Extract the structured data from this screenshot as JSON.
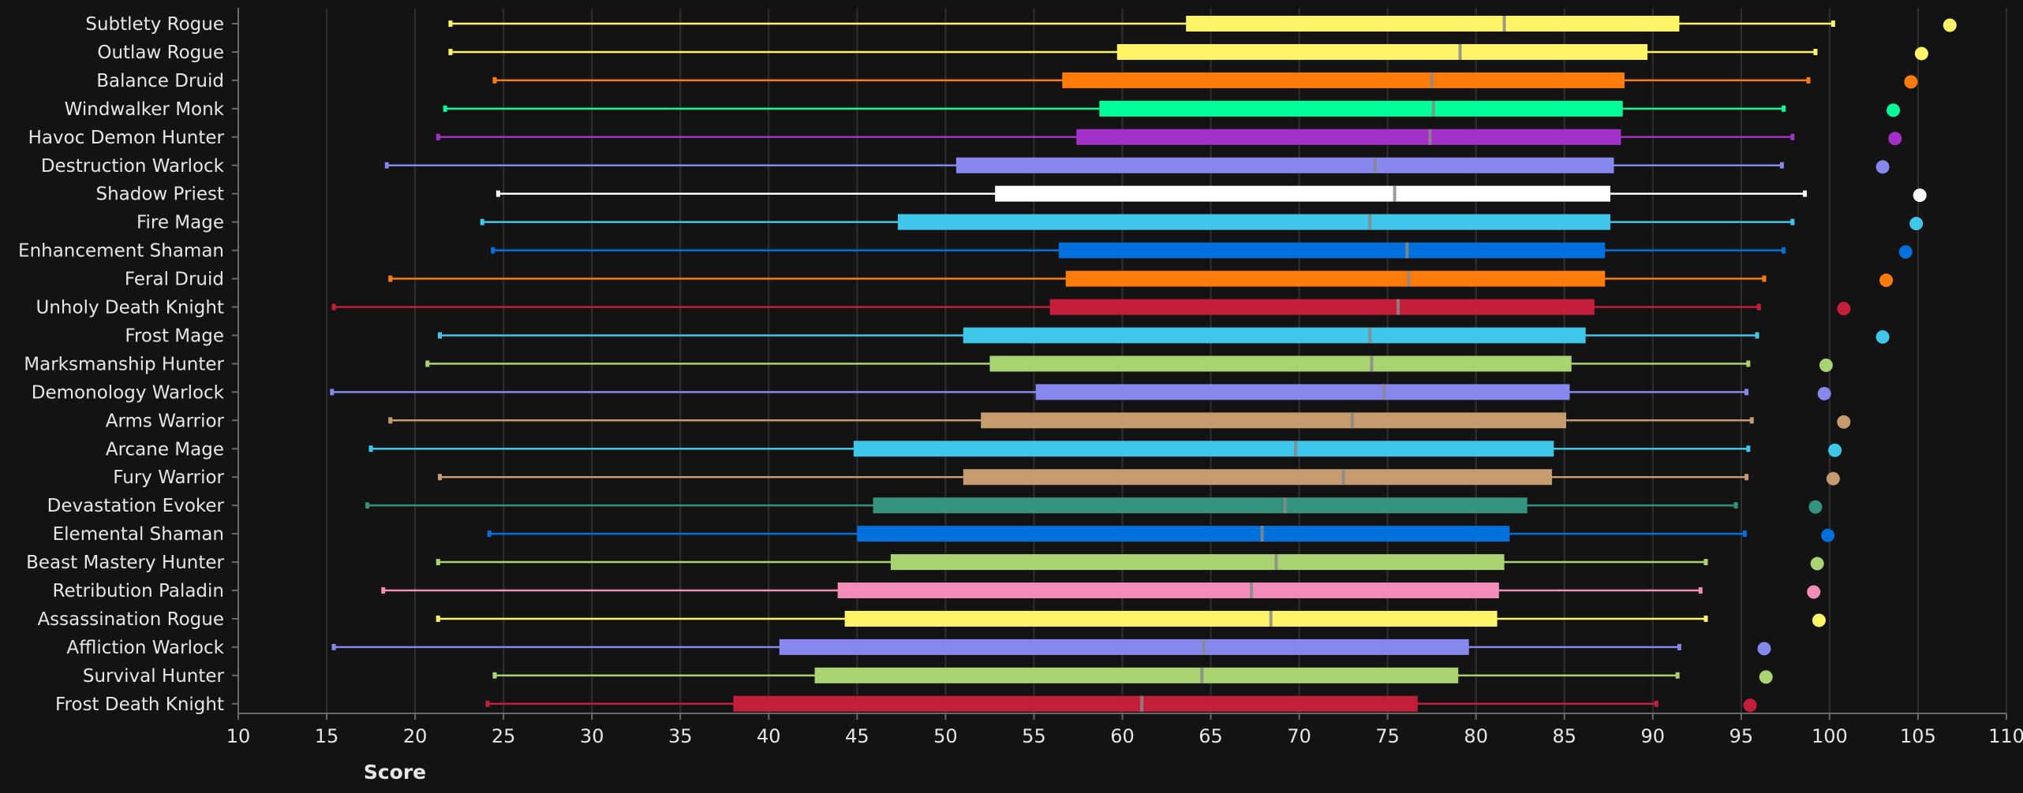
{
  "chart_data": {
    "type": "box",
    "title": "",
    "xlabel": "Score",
    "ylabel": "",
    "xlim": [
      10,
      110
    ],
    "xticks": [
      10,
      15,
      20,
      25,
      30,
      35,
      40,
      45,
      50,
      55,
      60,
      65,
      70,
      75,
      80,
      85,
      90,
      95,
      100,
      105,
      110
    ],
    "grid": "vertical",
    "legend": "none",
    "series": [
      {
        "name": "Subtlety Rogue",
        "color": "#FFF468",
        "whisker_low": 22.0,
        "q1": 63.6,
        "median": 81.6,
        "q3": 91.5,
        "whisker_high": 100.2,
        "max": 106.8
      },
      {
        "name": "Outlaw Rogue",
        "color": "#FFF468",
        "whisker_low": 22.0,
        "q1": 59.7,
        "median": 79.1,
        "q3": 89.7,
        "whisker_high": 99.2,
        "max": 105.2
      },
      {
        "name": "Balance Druid",
        "color": "#FF7C0A",
        "whisker_low": 24.5,
        "q1": 56.6,
        "median": 77.5,
        "q3": 88.4,
        "whisker_high": 98.8,
        "max": 104.6
      },
      {
        "name": "Windwalker Monk",
        "color": "#00FF98",
        "whisker_low": 21.7,
        "q1": 58.7,
        "median": 77.6,
        "q3": 88.3,
        "whisker_high": 97.4,
        "max": 103.6
      },
      {
        "name": "Havoc Demon Hunter",
        "color": "#A330C9",
        "whisker_low": 21.3,
        "q1": 57.4,
        "median": 77.4,
        "q3": 88.2,
        "whisker_high": 97.9,
        "max": 103.7
      },
      {
        "name": "Destruction Warlock",
        "color": "#8788EE",
        "whisker_low": 18.4,
        "q1": 50.6,
        "median": 74.3,
        "q3": 87.8,
        "whisker_high": 97.3,
        "max": 103.0
      },
      {
        "name": "Shadow Priest",
        "color": "#FFFFFF",
        "whisker_low": 24.7,
        "q1": 52.8,
        "median": 75.4,
        "q3": 87.6,
        "whisker_high": 98.6,
        "max": 105.1
      },
      {
        "name": "Fire Mage",
        "color": "#3FC7EB",
        "whisker_low": 23.8,
        "q1": 47.3,
        "median": 74.0,
        "q3": 87.6,
        "whisker_high": 97.9,
        "max": 104.9
      },
      {
        "name": "Enhancement Shaman",
        "color": "#0070DD",
        "whisker_low": 24.4,
        "q1": 56.4,
        "median": 76.1,
        "q3": 87.3,
        "whisker_high": 97.4,
        "max": 104.3
      },
      {
        "name": "Feral Druid",
        "color": "#FF7C0A",
        "whisker_low": 18.6,
        "q1": 56.8,
        "median": 76.2,
        "q3": 87.3,
        "whisker_high": 96.3,
        "max": 103.2
      },
      {
        "name": "Unholy Death Knight",
        "color": "#C41E3A",
        "whisker_low": 15.4,
        "q1": 55.9,
        "median": 75.6,
        "q3": 86.7,
        "whisker_high": 96.0,
        "max": 100.8
      },
      {
        "name": "Frost Mage",
        "color": "#3FC7EB",
        "whisker_low": 21.4,
        "q1": 51.0,
        "median": 74.0,
        "q3": 86.2,
        "whisker_high": 95.9,
        "max": 103.0
      },
      {
        "name": "Marksmanship Hunter",
        "color": "#AAD372",
        "whisker_low": 20.7,
        "q1": 52.5,
        "median": 74.1,
        "q3": 85.4,
        "whisker_high": 95.4,
        "max": 99.8
      },
      {
        "name": "Demonology Warlock",
        "color": "#8788EE",
        "whisker_low": 15.3,
        "q1": 55.1,
        "median": 74.8,
        "q3": 85.3,
        "whisker_high": 95.3,
        "max": 99.7
      },
      {
        "name": "Arms Warrior",
        "color": "#C69B6D",
        "whisker_low": 18.6,
        "q1": 52.0,
        "median": 73.0,
        "q3": 85.1,
        "whisker_high": 95.6,
        "max": 100.8
      },
      {
        "name": "Arcane Mage",
        "color": "#3FC7EB",
        "whisker_low": 17.5,
        "q1": 44.8,
        "median": 69.8,
        "q3": 84.4,
        "whisker_high": 95.4,
        "max": 100.3
      },
      {
        "name": "Fury Warrior",
        "color": "#C69B6D",
        "whisker_low": 21.4,
        "q1": 51.0,
        "median": 72.5,
        "q3": 84.3,
        "whisker_high": 95.3,
        "max": 100.2
      },
      {
        "name": "Devastation Evoker",
        "color": "#33937F",
        "whisker_low": 17.3,
        "q1": 45.9,
        "median": 69.2,
        "q3": 82.9,
        "whisker_high": 94.7,
        "max": 99.2
      },
      {
        "name": "Elemental Shaman",
        "color": "#0070DD",
        "whisker_low": 24.2,
        "q1": 45.0,
        "median": 67.9,
        "q3": 81.9,
        "whisker_high": 95.2,
        "max": 99.9
      },
      {
        "name": "Beast Mastery Hunter",
        "color": "#AAD372",
        "whisker_low": 21.3,
        "q1": 46.9,
        "median": 68.7,
        "q3": 81.6,
        "whisker_high": 93.0,
        "max": 99.3
      },
      {
        "name": "Retribution Paladin",
        "color": "#F48CBA",
        "whisker_low": 18.2,
        "q1": 43.9,
        "median": 67.3,
        "q3": 81.3,
        "whisker_high": 92.7,
        "max": 99.1
      },
      {
        "name": "Assassination Rogue",
        "color": "#FFF468",
        "whisker_low": 21.3,
        "q1": 44.3,
        "median": 68.4,
        "q3": 81.2,
        "whisker_high": 93.0,
        "max": 99.4
      },
      {
        "name": "Affliction Warlock",
        "color": "#8788EE",
        "whisker_low": 15.4,
        "q1": 40.6,
        "median": 64.6,
        "q3": 79.6,
        "whisker_high": 91.5,
        "max": 96.3
      },
      {
        "name": "Survival Hunter",
        "color": "#AAD372",
        "whisker_low": 24.5,
        "q1": 42.6,
        "median": 64.5,
        "q3": 79.0,
        "whisker_high": 91.4,
        "max": 96.4
      },
      {
        "name": "Frost Death Knight",
        "color": "#C41E3A",
        "whisker_low": 24.1,
        "q1": 38.0,
        "median": 61.1,
        "q3": 76.7,
        "whisker_high": 90.2,
        "max": 95.5
      }
    ]
  },
  "colors": {
    "background": "#131313",
    "grid": "#2f2f2f",
    "axis": "#6a6a6a",
    "text": "#e6e6e6",
    "median_mark": "#8a8a8a"
  }
}
